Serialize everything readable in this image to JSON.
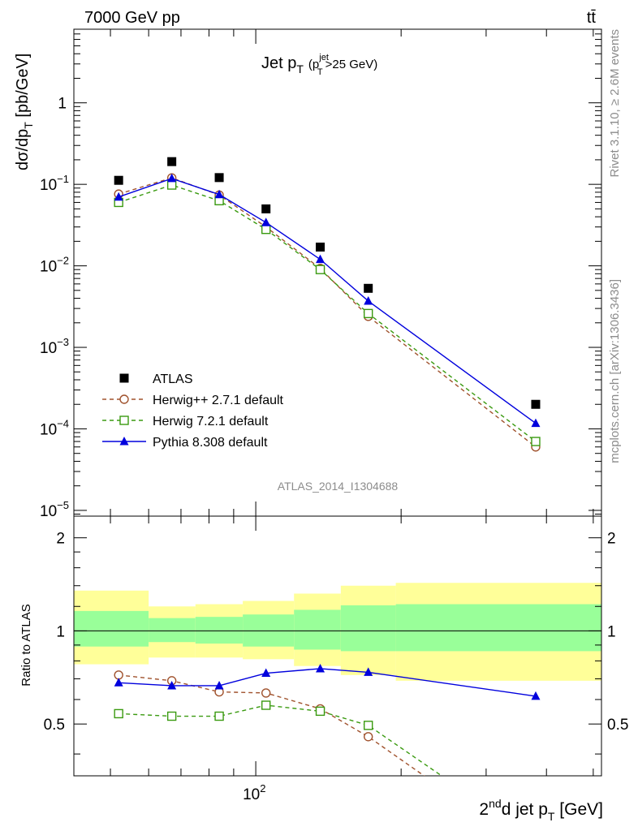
{
  "header": {
    "left": "7000 GeV pp",
    "right": "tt̄"
  },
  "side_labels": {
    "rivet": "Rivet 3.1.10, ≥ 2.6M events",
    "mcplots": "mcplots.cern.ch [arXiv:1306.3436]"
  },
  "analysis_id": "ATLAS_2014_I1304688",
  "plot_title": {
    "main": "Jet p",
    "main_sub": "T",
    "cut_open": "(p",
    "cut_sup": "jet",
    "cut_sub": "T",
    "cut_rest": ">25 GeV)"
  },
  "y_axis_main": {
    "label": "dσ/dp",
    "label_sub": "T",
    "label_unit": " [pb/GeV]",
    "ticks": [
      {
        "value": 1,
        "label": "1",
        "exp": ""
      },
      {
        "value": 0.1,
        "label": "10",
        "exp": "−1"
      },
      {
        "value": 0.01,
        "label": "10",
        "exp": "−2"
      },
      {
        "value": 0.001,
        "label": "10",
        "exp": "−3"
      },
      {
        "value": 0.0001,
        "label": "10",
        "exp": "−4"
      },
      {
        "value": 1e-05,
        "label": "10",
        "exp": "−5"
      }
    ]
  },
  "y_axis_ratio": {
    "label": "Ratio to ATLAS",
    "ticks": [
      {
        "value": 0.5,
        "label": "0.5"
      },
      {
        "value": 1,
        "label": "1"
      },
      {
        "value": 2,
        "label": "2"
      }
    ]
  },
  "x_axis": {
    "label_pre": "2",
    "label_sup": "nd",
    "label_mid": "d jet p",
    "label_sub": "T",
    "label_unit": " [GeV]",
    "tick_base": "10",
    "tick_exp": "2"
  },
  "colors": {
    "atlas": "#000000",
    "herwigpp": "#a0522d",
    "herwig7": "#3a9a10",
    "pythia": "#0000dd",
    "band_outer": "#ffff99",
    "band_inner": "#99ff99"
  },
  "chart_data": {
    "type": "line",
    "x_scale": "log",
    "y_scale": "log",
    "xlim": [
      42,
      520
    ],
    "ylim": [
      8.5e-06,
      8
    ],
    "ratio_ylim": [
      0.34,
      2.35
    ],
    "ratio_y_scale": "log",
    "legend_position": "bottom-left",
    "x": [
      52,
      67,
      84,
      105,
      136,
      171,
      380
    ],
    "bins": [
      [
        42,
        60
      ],
      [
        60,
        75
      ],
      [
        75,
        94
      ],
      [
        94,
        120
      ],
      [
        120,
        150
      ],
      [
        150,
        195
      ],
      [
        195,
        520
      ]
    ],
    "series": [
      {
        "name": "ATLAS",
        "key": "atlas",
        "marker": "square-filled",
        "line": "none",
        "values": [
          0.112,
          0.19,
          0.121,
          0.05,
          0.017,
          0.0053,
          0.0002
        ]
      },
      {
        "name": "Herwig++ 2.7.1 default",
        "key": "herwigpp",
        "marker": "circle-open",
        "line": "dashed",
        "values": [
          0.076,
          0.12,
          0.074,
          0.03,
          0.0093,
          0.0024,
          6e-05
        ]
      },
      {
        "name": "Herwig 7.2.1 default",
        "key": "herwig7",
        "marker": "square-open",
        "line": "dashed",
        "values": [
          0.06,
          0.098,
          0.063,
          0.028,
          0.009,
          0.0026,
          7e-05
        ]
      },
      {
        "name": "Pythia 8.308 default",
        "key": "pythia",
        "marker": "triangle-filled",
        "line": "solid",
        "values": [
          0.07,
          0.118,
          0.075,
          0.034,
          0.012,
          0.0037,
          0.000117
        ]
      }
    ],
    "ratio": {
      "herwigpp": [
        0.72,
        0.69,
        0.635,
        0.63,
        0.56,
        0.455,
        0.19
      ],
      "herwig7": [
        0.54,
        0.53,
        0.53,
        0.575,
        0.55,
        0.495,
        0.21
      ],
      "pythia": [
        0.68,
        0.665,
        0.665,
        0.73,
        0.755,
        0.735,
        0.615
      ]
    },
    "bands": {
      "outer": [
        [
          0.78,
          1.35
        ],
        [
          0.82,
          1.2
        ],
        [
          0.82,
          1.22
        ],
        [
          0.81,
          1.25
        ],
        [
          0.77,
          1.32
        ],
        [
          0.72,
          1.4
        ],
        [
          0.69,
          1.43
        ]
      ],
      "inner": [
        [
          0.89,
          1.16
        ],
        [
          0.92,
          1.1
        ],
        [
          0.91,
          1.11
        ],
        [
          0.89,
          1.13
        ],
        [
          0.87,
          1.17
        ],
        [
          0.86,
          1.21
        ],
        [
          0.86,
          1.22
        ]
      ]
    }
  }
}
